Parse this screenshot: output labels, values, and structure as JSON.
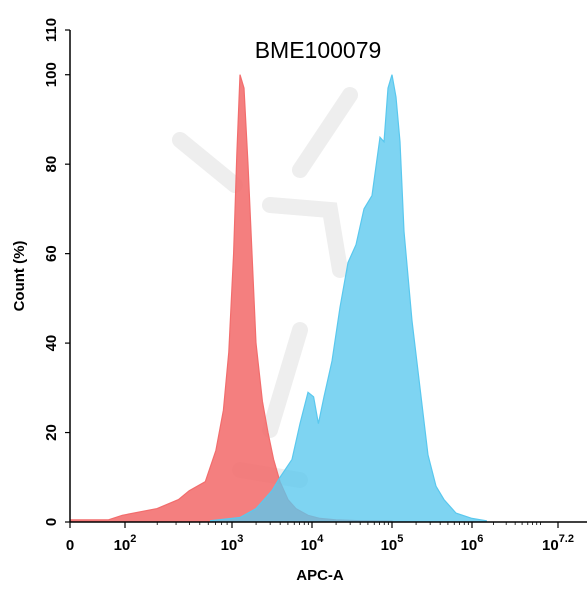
{
  "chart_data": {
    "type": "area",
    "title": "BME100079",
    "xlabel": "APC-A",
    "ylabel": "Count (%)",
    "x_scale": "log",
    "ylim": [
      0,
      110
    ],
    "y_ticks": [
      0,
      20,
      40,
      60,
      80,
      100,
      110
    ],
    "x_ticks": [
      {
        "base": "0",
        "exp": ""
      },
      {
        "base": "10",
        "exp": "2"
      },
      {
        "base": "10",
        "exp": "3"
      },
      {
        "base": "10",
        "exp": "4"
      },
      {
        "base": "10",
        "exp": "5"
      },
      {
        "base": "10",
        "exp": "6"
      },
      {
        "base": "10",
        "exp": "7.2"
      }
    ],
    "grid": false,
    "legend": "none",
    "colors": {
      "red_series": "#f26d6d",
      "blue_series": "#5ac8ee",
      "overlap": "#a46a7e"
    },
    "series": [
      {
        "color": "#f26d6d",
        "x_log10": [
          0.0,
          1.4,
          1.9,
          2.3,
          2.5,
          2.6,
          2.75,
          2.85,
          2.92,
          2.97,
          3.02,
          3.06,
          3.1,
          3.15,
          3.2,
          3.25,
          3.3,
          3.38,
          3.45,
          3.52,
          3.6,
          3.7,
          3.8,
          3.95,
          4.1,
          4.3,
          4.6,
          5.0
        ],
        "y": [
          0.5,
          0.5,
          1.5,
          3,
          5,
          7,
          9,
          16,
          25,
          38,
          60,
          82,
          100,
          97,
          80,
          60,
          40,
          27,
          20,
          14,
          9,
          5,
          3,
          1.5,
          0.8,
          0.5,
          0.3,
          0.2
        ]
      },
      {
        "color": "#5ac8ee",
        "x_log10": [
          2.8,
          3.1,
          3.3,
          3.5,
          3.6,
          3.75,
          3.85,
          3.95,
          4.02,
          4.08,
          4.15,
          4.25,
          4.35,
          4.45,
          4.55,
          4.65,
          4.75,
          4.85,
          4.9,
          4.95,
          5.0,
          5.05,
          5.1,
          5.15,
          5.25,
          5.35,
          5.45,
          5.55,
          5.65,
          5.8,
          6.0,
          6.2
        ],
        "y": [
          0.3,
          1,
          3,
          7,
          10,
          14,
          22,
          29,
          28,
          22,
          28,
          36,
          48,
          58,
          62,
          70,
          73,
          86,
          85,
          97,
          100,
          95,
          85,
          65,
          45,
          30,
          15,
          8,
          5,
          2,
          0.8,
          0.3
        ]
      }
    ]
  }
}
